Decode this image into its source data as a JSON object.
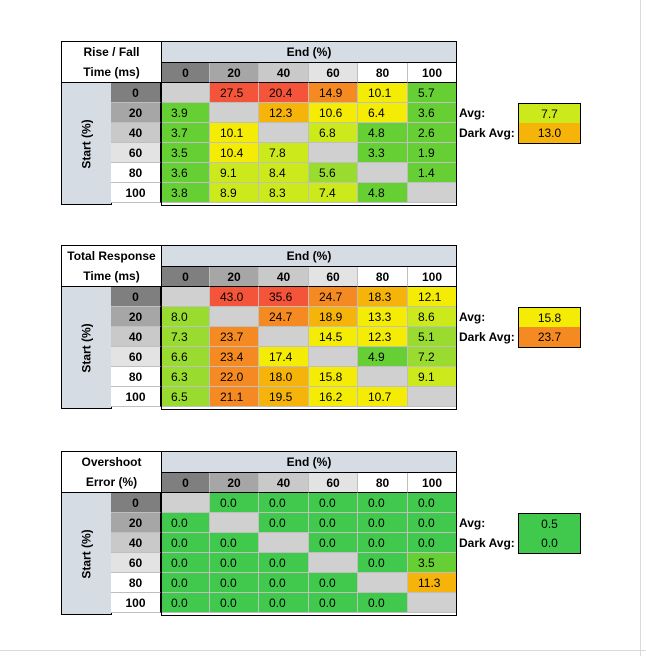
{
  "colors": {
    "red": "#f4553a",
    "dark_orange": "#f58a23",
    "orange": "#f6b40a",
    "yellow": "#f5ec05",
    "yellow_green": "#ccea1b",
    "green_lime": "#99db2f",
    "green": "#66cf33",
    "bright_green": "#40c94c",
    "gray": "#d0d0d0",
    "hdr_gray": "#d6dce4",
    "col_dark": "#7f7f7f",
    "col_mid": "#a6a6a6",
    "col_light": "#c9c9c9",
    "col_lighter": "#e3e3e3",
    "col_white": "#ffffff"
  },
  "col_labels": [
    "0",
    "20",
    "40",
    "60",
    "80",
    "100"
  ],
  "row_labels": [
    "0",
    "20",
    "40",
    "60",
    "80",
    "100"
  ],
  "end_label": "End (%)",
  "start_label": "Start (%)",
  "avg_label": "Avg:",
  "dark_avg_label": "Dark Avg:",
  "tables": [
    {
      "title_line1": "Rise / Fall",
      "title_line2": "Time (ms)",
      "cells": [
        [
          "",
          "27.5",
          "20.4",
          "14.9",
          "10.1",
          "5.7"
        ],
        [
          "3.9",
          "",
          "12.3",
          "10.6",
          "6.4",
          "3.6"
        ],
        [
          "3.7",
          "10.1",
          "",
          "6.8",
          "4.8",
          "2.6"
        ],
        [
          "3.5",
          "10.4",
          "7.8",
          "",
          "3.3",
          "1.9"
        ],
        [
          "3.6",
          "9.1",
          "8.4",
          "5.6",
          "",
          "1.4"
        ],
        [
          "3.8",
          "8.9",
          "8.3",
          "7.4",
          "4.8",
          ""
        ]
      ],
      "cell_colors": [
        [
          "gray",
          "red",
          "red",
          "dark_orange",
          "yellow",
          "green"
        ],
        [
          "green",
          "gray",
          "orange",
          "yellow",
          "yellow",
          "green"
        ],
        [
          "green",
          "yellow",
          "gray",
          "yellow_green",
          "green",
          "green"
        ],
        [
          "green",
          "yellow",
          "yellow_green",
          "gray",
          "green",
          "green"
        ],
        [
          "green",
          "yellow_green",
          "yellow_green",
          "green_lime",
          "gray",
          "green"
        ],
        [
          "green",
          "yellow_green",
          "yellow_green",
          "yellow_green",
          "green",
          "gray"
        ]
      ],
      "avg": "7.7",
      "avg_color": "yellow_green",
      "dark_avg": "13.0",
      "dark_avg_color": "orange"
    },
    {
      "title_line1": "Total Response",
      "title_line2": "Time (ms)",
      "cells": [
        [
          "",
          "43.0",
          "35.6",
          "24.7",
          "18.3",
          "12.1"
        ],
        [
          "8.0",
          "",
          "24.7",
          "18.9",
          "13.3",
          "8.6"
        ],
        [
          "7.3",
          "23.7",
          "",
          "14.5",
          "12.3",
          "5.1"
        ],
        [
          "6.6",
          "23.4",
          "17.4",
          "",
          "4.9",
          "7.2"
        ],
        [
          "6.3",
          "22.0",
          "18.0",
          "15.8",
          "",
          "9.1"
        ],
        [
          "6.5",
          "21.1",
          "19.5",
          "16.2",
          "10.7",
          ""
        ]
      ],
      "cell_colors": [
        [
          "gray",
          "red",
          "red",
          "dark_orange",
          "orange",
          "yellow"
        ],
        [
          "green_lime",
          "gray",
          "dark_orange",
          "orange",
          "yellow",
          "yellow_green"
        ],
        [
          "green_lime",
          "dark_orange",
          "gray",
          "yellow",
          "yellow",
          "green_lime"
        ],
        [
          "green_lime",
          "dark_orange",
          "yellow",
          "gray",
          "green",
          "green_lime"
        ],
        [
          "green_lime",
          "dark_orange",
          "orange",
          "yellow",
          "gray",
          "yellow_green"
        ],
        [
          "green_lime",
          "dark_orange",
          "orange",
          "yellow",
          "yellow",
          "gray"
        ]
      ],
      "avg": "15.8",
      "avg_color": "yellow",
      "dark_avg": "23.7",
      "dark_avg_color": "dark_orange"
    },
    {
      "title_line1": "Overshoot",
      "title_line2": "Error (%)",
      "cells": [
        [
          "",
          "0.0",
          "0.0",
          "0.0",
          "0.0",
          "0.0"
        ],
        [
          "0.0",
          "",
          "0.0",
          "0.0",
          "0.0",
          "0.0"
        ],
        [
          "0.0",
          "0.0",
          "",
          "0.0",
          "0.0",
          "0.0"
        ],
        [
          "0.0",
          "0.0",
          "0.0",
          "",
          "0.0",
          "3.5"
        ],
        [
          "0.0",
          "0.0",
          "0.0",
          "0.0",
          "",
          "11.3"
        ],
        [
          "0.0",
          "0.0",
          "0.0",
          "0.0",
          "0.0",
          ""
        ]
      ],
      "cell_colors": [
        [
          "gray",
          "bright_green",
          "bright_green",
          "bright_green",
          "bright_green",
          "bright_green"
        ],
        [
          "bright_green",
          "gray",
          "bright_green",
          "bright_green",
          "bright_green",
          "bright_green"
        ],
        [
          "bright_green",
          "bright_green",
          "gray",
          "bright_green",
          "bright_green",
          "bright_green"
        ],
        [
          "bright_green",
          "bright_green",
          "bright_green",
          "gray",
          "bright_green",
          "green"
        ],
        [
          "bright_green",
          "bright_green",
          "bright_green",
          "bright_green",
          "gray",
          "orange"
        ],
        [
          "bright_green",
          "bright_green",
          "bright_green",
          "bright_green",
          "bright_green",
          "gray"
        ]
      ],
      "avg": "0.5",
      "avg_color": "bright_green",
      "dark_avg": "0.0",
      "dark_avg_color": "bright_green"
    }
  ]
}
